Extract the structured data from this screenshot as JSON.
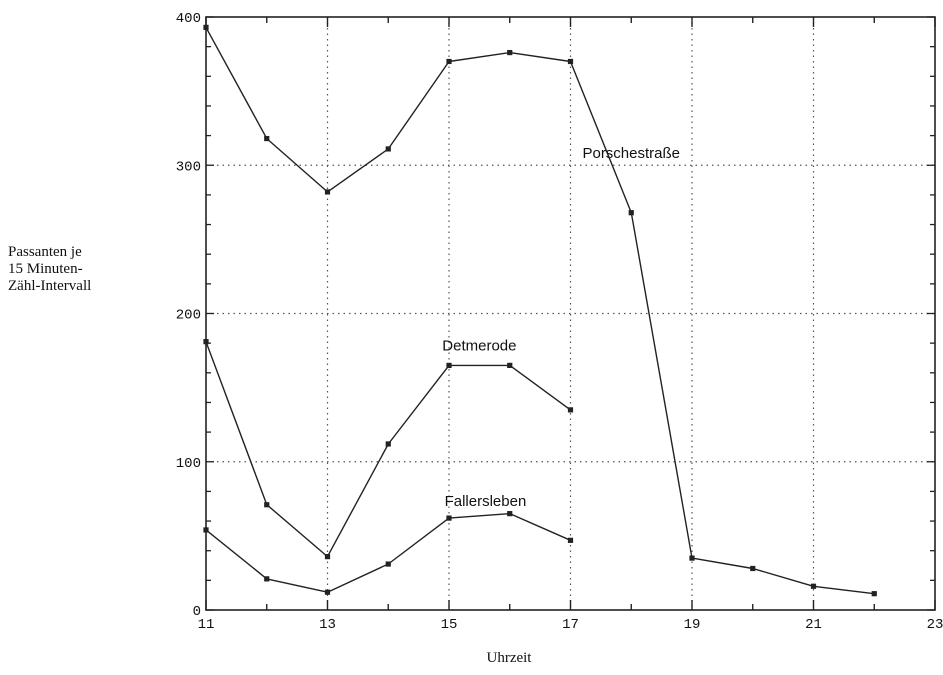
{
  "chart_data": {
    "type": "line",
    "xlabel": "Uhrzeit",
    "ylabel_lines": [
      "Passanten je",
      "15 Minuten-",
      "Zähl-Intervall"
    ],
    "xlim": [
      11,
      23
    ],
    "ylim": [
      0,
      400
    ],
    "x_ticks": [
      11,
      13,
      15,
      17,
      19,
      21,
      23
    ],
    "y_ticks": [
      0,
      100,
      200,
      300,
      400
    ],
    "grid": true,
    "grid_style": "dotted",
    "series": [
      {
        "name": "Porschestraße",
        "x": [
          11,
          12,
          13,
          14,
          15,
          16,
          17,
          18,
          19,
          20,
          21,
          22
        ],
        "y": [
          393,
          318,
          282,
          311,
          370,
          376,
          370,
          268,
          35,
          28,
          16,
          11
        ]
      },
      {
        "name": "Detmerode",
        "x": [
          11,
          12,
          13,
          14,
          15,
          16,
          17
        ],
        "y": [
          181,
          71,
          36,
          112,
          165,
          165,
          135
        ]
      },
      {
        "name": "Fallersleben",
        "x": [
          11,
          12,
          13,
          14,
          15,
          16,
          17
        ],
        "y": [
          54,
          21,
          12,
          31,
          62,
          65,
          47
        ]
      }
    ],
    "colors": {
      "line": "#222222",
      "grid": "#555555",
      "text": "#111111"
    }
  }
}
